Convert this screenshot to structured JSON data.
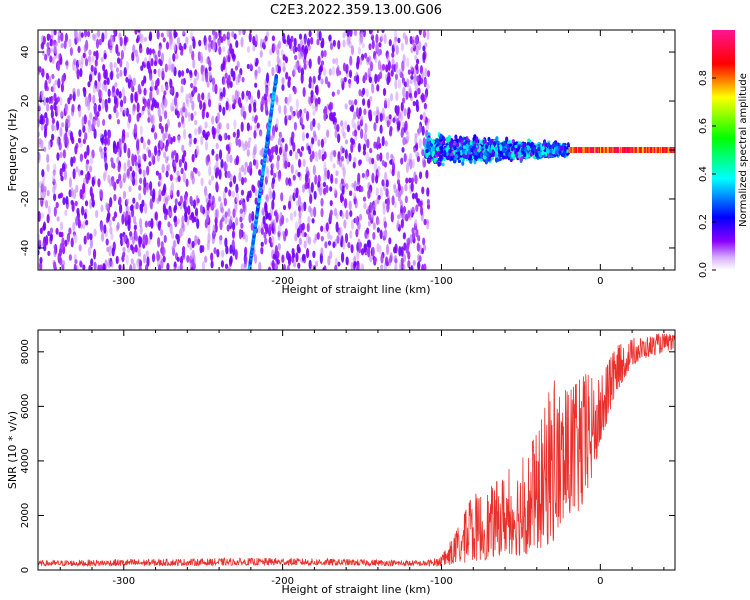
{
  "figure": {
    "title": "C2E3.2022.359.13.00.G06"
  },
  "colors": {
    "snr_line": "#e8302c",
    "background": "#ffffff",
    "axis": "#000000",
    "colormap": [
      "#ffffff",
      "#cc99ff",
      "#7b00ff",
      "#0000ff",
      "#00ffff",
      "#00ff00",
      "#ffff00",
      "#ff0000",
      "#ff00aa"
    ]
  },
  "chart_data": [
    {
      "type": "heatmap",
      "name": "spectrogram",
      "title": "",
      "xlabel": "Height of straight line (km)",
      "ylabel": "Frequency (Hz)",
      "xlim": [
        -354,
        47
      ],
      "ylim": [
        -49,
        49
      ],
      "xticks": [
        -300,
        -200,
        -100,
        0
      ],
      "yticks": [
        -40,
        -20,
        0,
        20,
        40
      ],
      "colorbar": {
        "label": "Normalized spectral amplitude",
        "range": [
          0,
          1
        ],
        "ticks": [
          0.0,
          0.2,
          0.4,
          0.6,
          0.8
        ]
      },
      "regions": [
        {
          "x_range": [
            -354,
            -108
          ],
          "y_range": [
            -49,
            49
          ],
          "description": "broadband noise, amplitude ~0.1-0.25"
        },
        {
          "x_range": [
            -110,
            -20
          ],
          "y_range": [
            -8,
            8
          ],
          "description": "band near 0 Hz, amplitude ~0.2-0.5"
        },
        {
          "x_range": [
            -20,
            47
          ],
          "y_range": [
            -2,
            2
          ],
          "description": "narrow carrier line at 0 Hz, amplitude ~0.8-1.0"
        }
      ],
      "diagonal_trace": {
        "x": [
          -221,
          -204
        ],
        "y": [
          -49,
          30
        ],
        "amplitude": 0.3
      },
      "grid": false
    },
    {
      "type": "line",
      "name": "snr",
      "title": "",
      "xlabel": "Height of straight line (km)",
      "ylabel": "SNR (10 * v/v)",
      "xlim": [
        -354,
        47
      ],
      "ylim": [
        0,
        8800
      ],
      "xticks": [
        -300,
        -200,
        -100,
        0
      ],
      "yticks": [
        0,
        2000,
        4000,
        6000,
        8000
      ],
      "envelope": {
        "x": [
          -354,
          -300,
          -200,
          -110,
          -100,
          -90,
          -80,
          -70,
          -60,
          -50,
          -40,
          -30,
          -20,
          -10,
          0,
          10,
          20,
          30,
          40,
          47
        ],
        "low": [
          150,
          150,
          180,
          150,
          150,
          200,
          300,
          400,
          600,
          500,
          700,
          1000,
          1800,
          2200,
          4500,
          6500,
          7500,
          7800,
          8000,
          8100
        ],
        "high": [
          350,
          400,
          450,
          350,
          500,
          1500,
          2800,
          3000,
          3600,
          4000,
          5000,
          7000,
          6500,
          7200,
          7000,
          8200,
          8500,
          8600,
          8700,
          8600
        ]
      },
      "grid": false
    }
  ]
}
